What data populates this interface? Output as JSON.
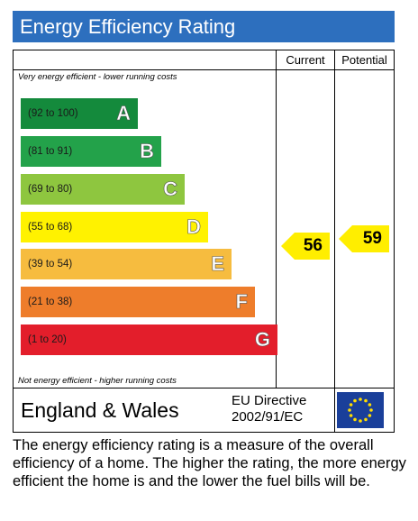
{
  "title": "Energy Efficiency Rating",
  "columns": {
    "current": "Current",
    "potential": "Potential"
  },
  "top_note": "Very energy efficient - lower running costs",
  "bottom_note": "Not energy efficient - higher running costs",
  "bands": [
    {
      "range": "(92 to 100)",
      "letter": "A",
      "color": "#148a3c"
    },
    {
      "range": "(81 to 91)",
      "letter": "B",
      "color": "#23a24a"
    },
    {
      "range": "(69 to 80)",
      "letter": "C",
      "color": "#8ec63f"
    },
    {
      "range": "(55 to 68)",
      "letter": "D",
      "color": "#fff200"
    },
    {
      "range": "(39 to 54)",
      "letter": "E",
      "color": "#f6bc3f"
    },
    {
      "range": "(21 to 38)",
      "letter": "F",
      "color": "#ee7d2b"
    },
    {
      "range": "(1 to 20)",
      "letter": "G",
      "color": "#e31e2b"
    }
  ],
  "current_rating": "56",
  "potential_rating": "59",
  "arrow_color": "#ffee00",
  "region": "England & Wales",
  "directive_line1": "EU Directive",
  "directive_line2": "2002/91/EC",
  "flag_icon": "eu-flag-icon",
  "description": "The energy efficiency rating is a measure of the overall efficiency of a home. The higher the rating, the more energy efficient the home is and the lower the fuel bills will be."
}
